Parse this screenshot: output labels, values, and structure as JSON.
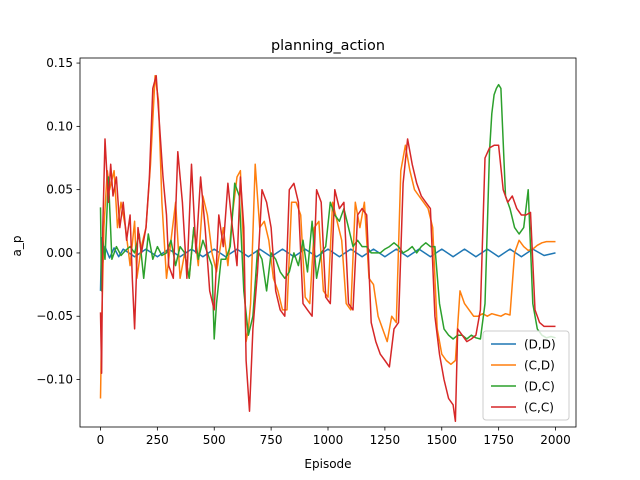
{
  "chart_data": {
    "type": "line",
    "title": "planning_action",
    "xlabel": "Episode",
    "ylabel": "a_p",
    "xlim": [
      -90,
      2090
    ],
    "ylim": [
      -0.1375,
      0.154
    ],
    "xticks": [
      0,
      250,
      500,
      750,
      1000,
      1250,
      1500,
      1750,
      2000
    ],
    "xtick_labels": [
      "0",
      "250",
      "500",
      "750",
      "1000",
      "1250",
      "1500",
      "1750",
      "2000"
    ],
    "yticks": [
      -0.1,
      -0.05,
      0.0,
      0.05,
      0.1,
      0.15
    ],
    "ytick_labels": [
      "−0.10",
      "−0.05",
      "0.00",
      "0.05",
      "0.10",
      "0.15"
    ],
    "grid": false,
    "legend_position": "lower-right",
    "series": [
      {
        "name": "(D,D)",
        "color": "#1f77b4",
        "x": [
          0,
          5,
          10,
          20,
          40,
          60,
          80,
          100,
          150,
          200,
          250,
          300,
          350,
          400,
          450,
          500,
          550,
          600,
          650,
          700,
          750,
          800,
          850,
          900,
          950,
          1000,
          1050,
          1100,
          1150,
          1200,
          1250,
          1300,
          1350,
          1400,
          1450,
          1500,
          1550,
          1600,
          1650,
          1700,
          1750,
          1800,
          1850,
          1900,
          1950,
          2000
        ],
        "y": [
          -0.03,
          0.012,
          -0.008,
          0.005,
          -0.004,
          0.004,
          -0.003,
          0.003,
          -0.003,
          0.003,
          -0.003,
          0.003,
          -0.003,
          0.003,
          -0.003,
          0.003,
          -0.003,
          0.003,
          -0.003,
          0.003,
          -0.003,
          0.003,
          -0.003,
          0.003,
          -0.003,
          0.003,
          -0.003,
          0.003,
          -0.003,
          0.003,
          -0.003,
          0.003,
          -0.003,
          0.003,
          -0.003,
          0.003,
          -0.003,
          0.003,
          -0.003,
          0.003,
          -0.003,
          0.003,
          -0.003,
          0.003,
          -0.002,
          0.0
        ]
      },
      {
        "name": "(C,D)",
        "color": "#ff7f0e",
        "x": [
          0,
          5,
          15,
          30,
          40,
          60,
          75,
          90,
          110,
          130,
          150,
          160,
          180,
          200,
          220,
          240,
          255,
          270,
          290,
          310,
          330,
          350,
          370,
          390,
          410,
          430,
          450,
          470,
          490,
          510,
          540,
          560,
          580,
          600,
          615,
          630,
          640,
          650,
          660,
          680,
          700,
          720,
          740,
          760,
          780,
          800,
          820,
          840,
          860,
          880,
          900,
          920,
          940,
          960,
          980,
          1000,
          1020,
          1040,
          1060,
          1080,
          1100,
          1120,
          1140,
          1160,
          1180,
          1200,
          1220,
          1240,
          1260,
          1280,
          1300,
          1320,
          1340,
          1360,
          1380,
          1400,
          1420,
          1440,
          1460,
          1480,
          1500,
          1520,
          1540,
          1560,
          1580,
          1600,
          1620,
          1640,
          1660,
          1680,
          1700,
          1720,
          1740,
          1760,
          1780,
          1800,
          1820,
          1840,
          1860,
          1880,
          1900,
          1920,
          1940,
          1960,
          1980,
          2000
        ],
        "y": [
          -0.115,
          -0.06,
          0.02,
          0.065,
          0.05,
          0.065,
          0.02,
          0.04,
          0.02,
          -0.01,
          0.025,
          -0.02,
          0.005,
          0.02,
          0.07,
          0.14,
          0.12,
          0.04,
          -0.02,
          0.01,
          0.04,
          -0.02,
          0.0,
          -0.02,
          0.02,
          -0.01,
          0.045,
          0.03,
          0.0,
          -0.015,
          0.02,
          -0.01,
          0.03,
          0.06,
          0.065,
          0.0,
          -0.07,
          -0.06,
          -0.04,
          0.07,
          0.02,
          0.025,
          0.01,
          -0.02,
          -0.03,
          -0.045,
          -0.045,
          0.04,
          0.04,
          0.03,
          -0.035,
          -0.04,
          0.02,
          0.025,
          -0.03,
          -0.035,
          0.04,
          0.025,
          0.01,
          -0.04,
          -0.045,
          0.04,
          0.02,
          0.04,
          -0.02,
          -0.025,
          -0.05,
          -0.06,
          -0.07,
          -0.05,
          -0.055,
          0.065,
          0.085,
          0.065,
          0.05,
          0.045,
          0.04,
          0.035,
          0.02,
          -0.06,
          -0.08,
          -0.085,
          -0.088,
          -0.085,
          -0.03,
          -0.04,
          -0.045,
          -0.05,
          -0.05,
          -0.048,
          -0.05,
          -0.048,
          -0.049,
          -0.05,
          -0.048,
          -0.049,
          0.0,
          0.01,
          0.005,
          0.002,
          0.003,
          0.006,
          0.008,
          0.009,
          0.009,
          0.009
        ]
      },
      {
        "name": "(D,C)",
        "color": "#2ca02c",
        "x": [
          0,
          5,
          10,
          20,
          35,
          50,
          70,
          90,
          110,
          130,
          150,
          170,
          190,
          210,
          230,
          250,
          270,
          290,
          310,
          330,
          350,
          370,
          390,
          410,
          430,
          450,
          470,
          490,
          500,
          510,
          530,
          550,
          570,
          590,
          610,
          630,
          650,
          670,
          690,
          710,
          730,
          750,
          770,
          790,
          810,
          830,
          850,
          870,
          890,
          910,
          930,
          950,
          970,
          990,
          1010,
          1030,
          1050,
          1070,
          1090,
          1110,
          1130,
          1150,
          1170,
          1190,
          1210,
          1230,
          1250,
          1270,
          1290,
          1310,
          1330,
          1350,
          1370,
          1390,
          1410,
          1430,
          1450,
          1470,
          1490,
          1510,
          1530,
          1550,
          1570,
          1590,
          1610,
          1630,
          1650,
          1670,
          1690,
          1700,
          1710,
          1720,
          1730,
          1740,
          1750,
          1760,
          1780,
          1800,
          1820,
          1840,
          1860,
          1880,
          1900,
          1920,
          1940,
          1960,
          1980,
          2000
        ],
        "y": [
          0.036,
          -0.03,
          0.01,
          -0.005,
          0.06,
          -0.005,
          0.005,
          -0.002,
          0.002,
          0.005,
          0.0,
          0.015,
          -0.02,
          0.015,
          -0.005,
          0.005,
          -0.002,
          0.0,
          0.01,
          -0.01,
          0.005,
          0.0,
          -0.02,
          0.02,
          -0.005,
          0.01,
          0.0,
          -0.01,
          -0.068,
          -0.04,
          -0.005,
          -0.005,
          0.005,
          0.055,
          0.045,
          -0.03,
          -0.065,
          -0.05,
          0.002,
          -0.005,
          -0.03,
          0.0,
          -0.005,
          -0.015,
          -0.02,
          -0.015,
          0.0,
          -0.01,
          0.01,
          -0.015,
          0.025,
          -0.02,
          0.0,
          0.005,
          0.04,
          0.03,
          0.025,
          0.035,
          0.02,
          0.005,
          0.01,
          0.005,
          0.005,
          0.0,
          0.0,
          0.0,
          0.003,
          0.005,
          0.008,
          0.005,
          0.0,
          0.002,
          0.005,
          0.0,
          0.005,
          0.008,
          0.005,
          0.005,
          -0.04,
          -0.06,
          -0.065,
          -0.068,
          -0.065,
          -0.065,
          -0.068,
          -0.065,
          -0.067,
          -0.068,
          -0.04,
          0.02,
          0.08,
          0.11,
          0.125,
          0.13,
          0.133,
          0.13,
          0.045,
          0.035,
          0.02,
          0.015,
          0.02,
          0.05,
          -0.04,
          -0.06,
          -0.065,
          -0.067,
          -0.066,
          -0.067
        ]
      },
      {
        "name": "(C,C)",
        "color": "#d62728",
        "x": [
          0,
          5,
          10,
          20,
          35,
          45,
          55,
          70,
          85,
          100,
          115,
          130,
          140,
          150,
          165,
          180,
          200,
          215,
          230,
          245,
          260,
          275,
          290,
          300,
          320,
          340,
          360,
          380,
          400,
          420,
          440,
          460,
          480,
          500,
          520,
          540,
          560,
          580,
          600,
          615,
          630,
          640,
          655,
          670,
          690,
          710,
          730,
          750,
          770,
          790,
          810,
          830,
          850,
          870,
          890,
          910,
          930,
          950,
          970,
          990,
          1010,
          1030,
          1050,
          1070,
          1090,
          1110,
          1130,
          1150,
          1170,
          1190,
          1210,
          1230,
          1250,
          1270,
          1290,
          1310,
          1330,
          1350,
          1370,
          1390,
          1410,
          1430,
          1450,
          1470,
          1490,
          1510,
          1530,
          1550,
          1560,
          1570,
          1590,
          1610,
          1630,
          1650,
          1670,
          1690,
          1710,
          1730,
          1750,
          1770,
          1790,
          1810,
          1830,
          1850,
          1870,
          1890,
          1910,
          1930,
          1950,
          1970,
          2000
        ],
        "y": [
          -0.047,
          -0.095,
          0.02,
          0.09,
          0.04,
          0.07,
          0.045,
          0.06,
          0.02,
          0.04,
          0.01,
          0.03,
          -0.02,
          -0.06,
          0.02,
          0.0,
          0.02,
          0.06,
          0.13,
          0.14,
          0.1,
          0.06,
          0.03,
          -0.01,
          -0.02,
          0.08,
          0.04,
          -0.02,
          0.07,
          0.0,
          0.06,
          0.02,
          -0.03,
          -0.045,
          0.03,
          0.005,
          0.055,
          0.02,
          -0.01,
          0.06,
          0.02,
          -0.085,
          -0.125,
          -0.06,
          -0.015,
          0.05,
          0.04,
          0.02,
          -0.03,
          -0.045,
          -0.05,
          0.05,
          0.055,
          0.04,
          -0.04,
          -0.045,
          -0.05,
          0.05,
          0.04,
          -0.035,
          -0.04,
          0.05,
          0.035,
          0.04,
          -0.04,
          -0.045,
          0.03,
          0.035,
          0.03,
          -0.055,
          -0.07,
          -0.08,
          -0.085,
          -0.09,
          -0.06,
          -0.055,
          0.055,
          0.09,
          0.07,
          0.055,
          0.045,
          0.04,
          0.035,
          -0.05,
          -0.08,
          -0.1,
          -0.115,
          -0.12,
          -0.133,
          -0.06,
          -0.065,
          -0.07,
          -0.068,
          -0.065,
          -0.045,
          0.075,
          0.083,
          0.085,
          0.085,
          0.05,
          0.04,
          0.045,
          0.035,
          0.03,
          0.03,
          0.032,
          -0.045,
          -0.055,
          -0.058,
          -0.058,
          -0.058
        ]
      }
    ]
  }
}
